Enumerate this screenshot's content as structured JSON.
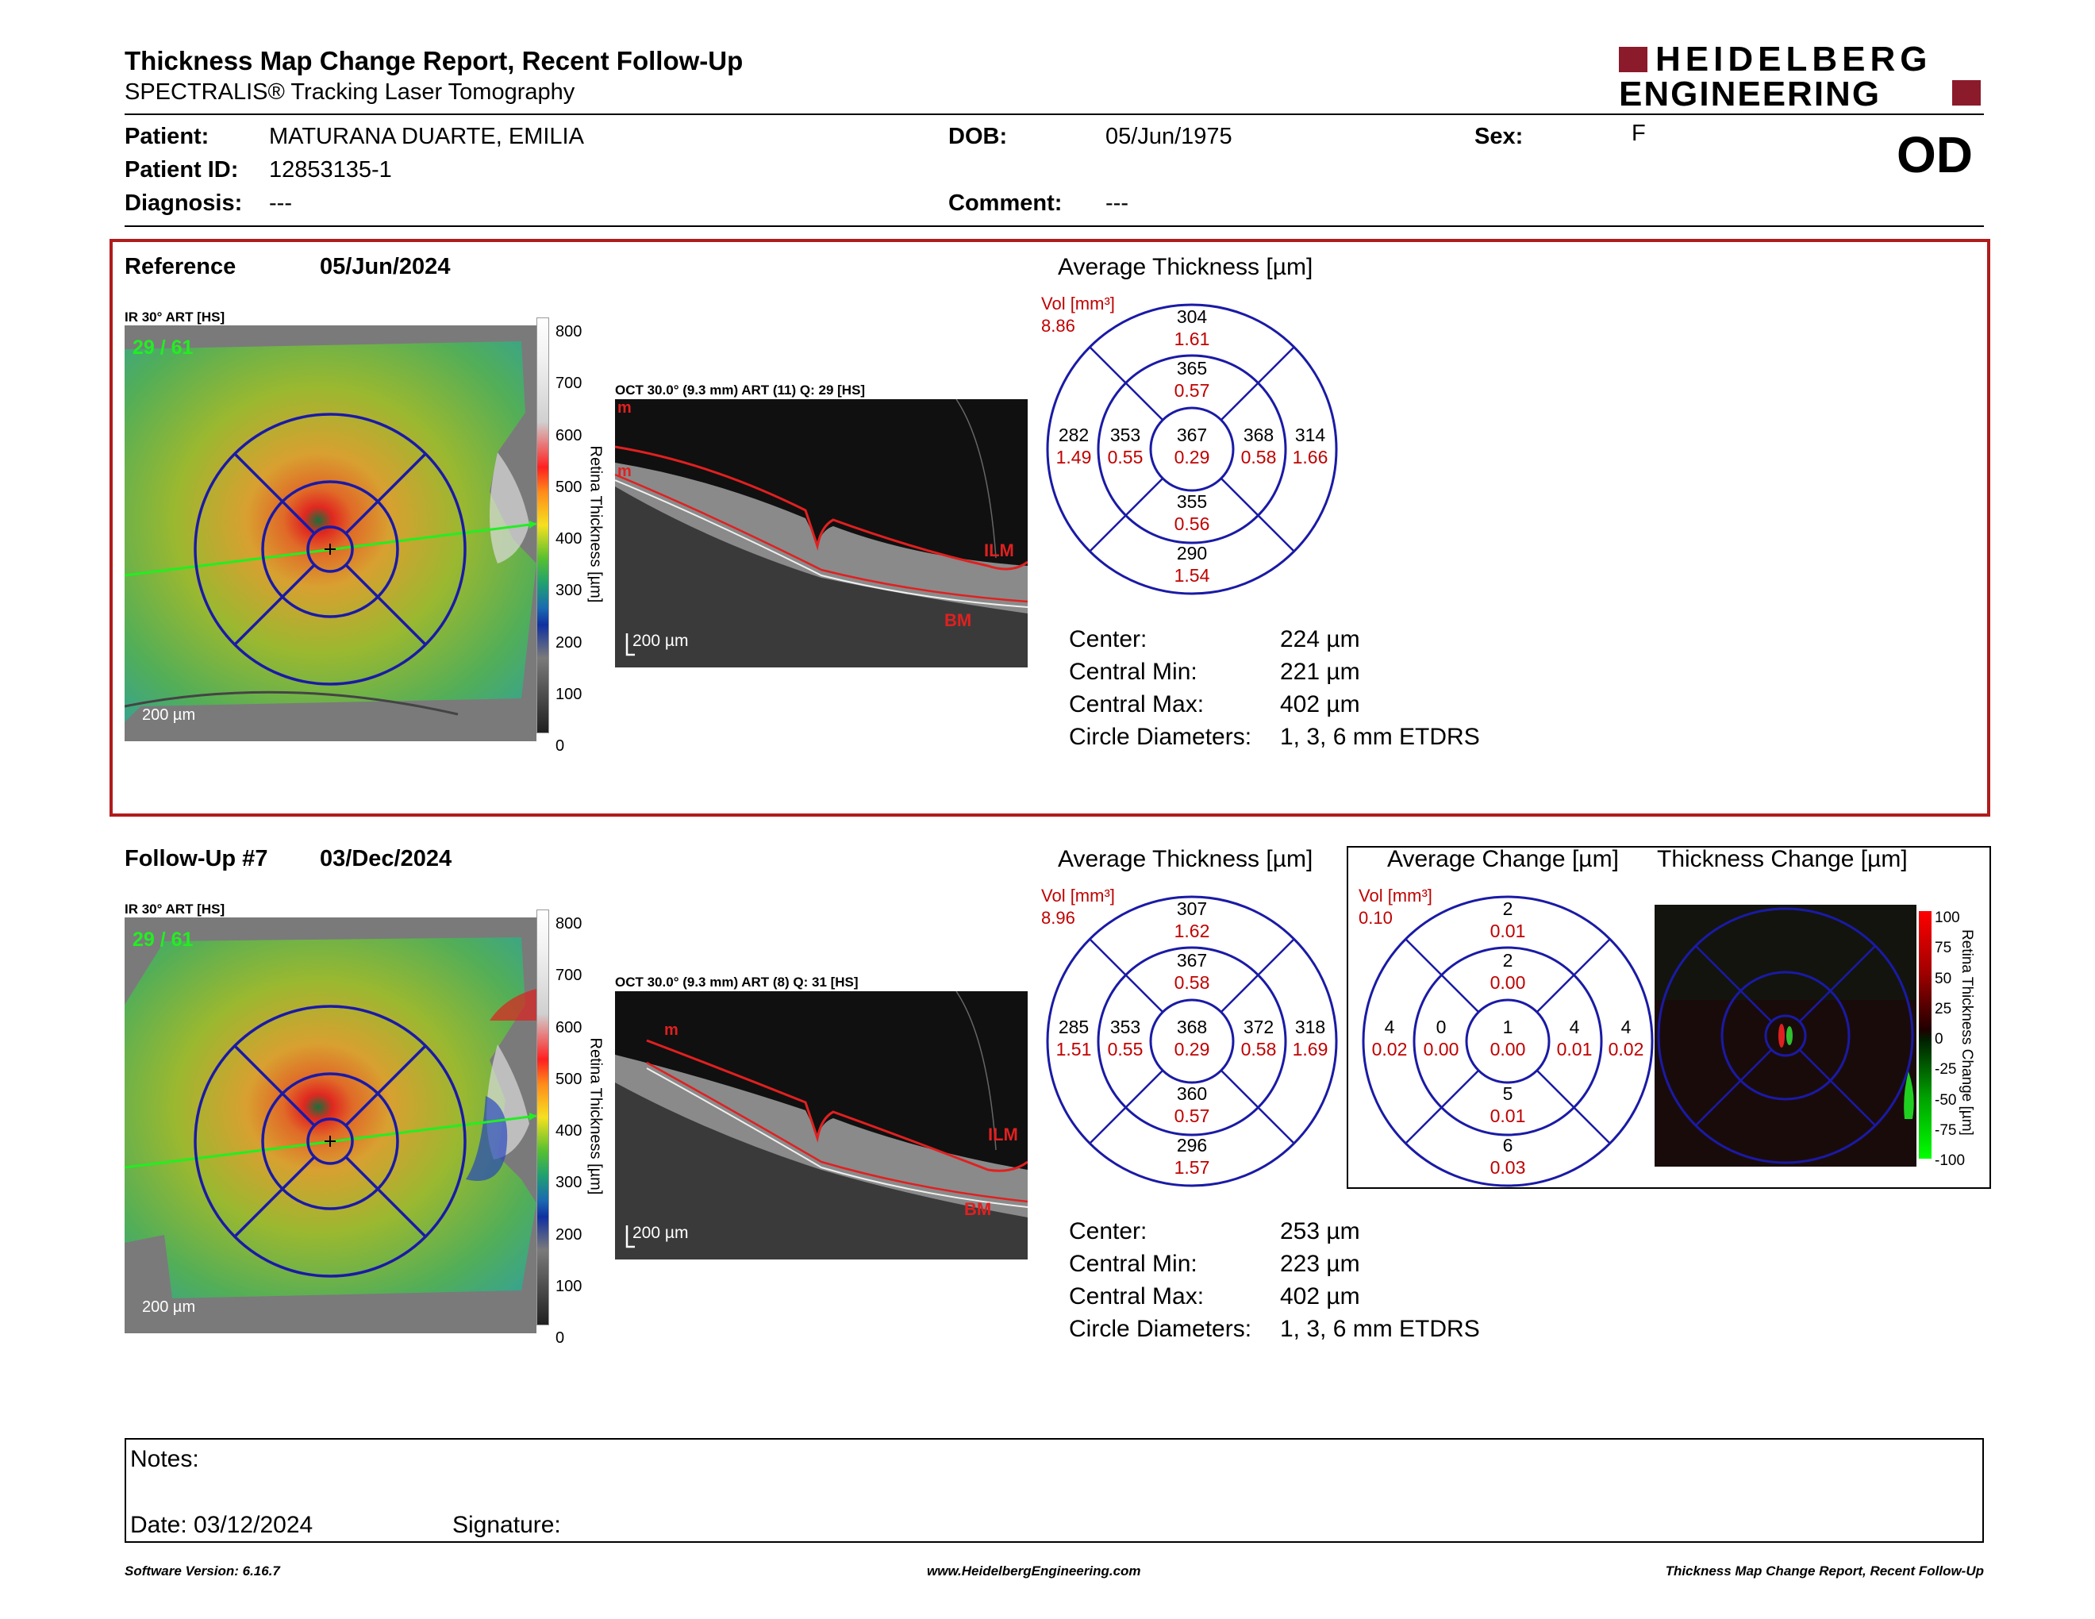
{
  "header": {
    "title": "Thickness Map Change Report, Recent Follow-Up",
    "subtitle": "SPECTRALIS® Tracking Laser Tomography",
    "logo_line1": "HEIDELBERG",
    "logo_line2": "ENGINEERING",
    "eye": "OD"
  },
  "patient": {
    "patient_label": "Patient:",
    "patient_value": "MATURANA DUARTE, EMILIA",
    "id_label": "Patient ID:",
    "id_value": "12853135-1",
    "diagnosis_label": "Diagnosis:",
    "diagnosis_value": "---",
    "dob_label": "DOB:",
    "dob_value": "05/Jun/1975",
    "comment_label": "Comment:",
    "comment_value": "---",
    "sex_label": "Sex:",
    "sex_value": "F"
  },
  "reference": {
    "label": "Reference",
    "date": "05/Jun/2024",
    "ir_label": "IR 30° ART [HS]",
    "ir_counter": "29 / 61",
    "ir_scale": "200 µm",
    "oct_label": "OCT 30.0° (9.3 mm) ART (11) Q: 29 [HS]",
    "oct_scale": "200 µm",
    "oct_ilm": "ILM",
    "oct_bm": "BM",
    "oct_m": "m",
    "colorbar_ticks": [
      "800",
      "700",
      "600",
      "500",
      "400",
      "300",
      "200",
      "100",
      "0"
    ],
    "colorbar_title": "Retina Thickness [µm]",
    "avg_title": "Average Thickness [µm]",
    "vol_label": "Vol [mm³]",
    "vol_value": "8.86",
    "grid": {
      "outer_top": [
        "304",
        "1.61"
      ],
      "inner_top": [
        "365",
        "0.57"
      ],
      "outer_left": [
        "282",
        "1.49"
      ],
      "inner_left": [
        "353",
        "0.55"
      ],
      "center": [
        "367",
        "0.29"
      ],
      "inner_right": [
        "368",
        "0.58"
      ],
      "outer_right": [
        "314",
        "1.66"
      ],
      "inner_bottom": [
        "355",
        "0.56"
      ],
      "outer_bottom": [
        "290",
        "1.54"
      ]
    },
    "stats": [
      {
        "label": "Center:",
        "value": "224 µm"
      },
      {
        "label": "Central Min:",
        "value": "221 µm"
      },
      {
        "label": "Central Max:",
        "value": "402 µm"
      },
      {
        "label": "Circle Diameters:",
        "value": "1, 3, 6 mm ETDRS"
      }
    ]
  },
  "followup": {
    "label": "Follow-Up #7",
    "date": "03/Dec/2024",
    "ir_label": "IR 30° ART [HS]",
    "ir_counter": "29 / 61",
    "ir_scale": "200 µm",
    "oct_label": "OCT 30.0° (9.3 mm) ART (8) Q: 31 [HS]",
    "oct_scale": "200 µm",
    "oct_ilm": "ILM",
    "oct_bm": "BM",
    "oct_m": "m",
    "colorbar_ticks": [
      "800",
      "700",
      "600",
      "500",
      "400",
      "300",
      "200",
      "100",
      "0"
    ],
    "colorbar_title": "Retina Thickness [µm]",
    "avg_title": "Average Thickness [µm]",
    "vol_label": "Vol [mm³]",
    "vol_value": "8.96",
    "grid": {
      "outer_top": [
        "307",
        "1.62"
      ],
      "inner_top": [
        "367",
        "0.58"
      ],
      "outer_left": [
        "285",
        "1.51"
      ],
      "inner_left": [
        "353",
        "0.55"
      ],
      "center": [
        "368",
        "0.29"
      ],
      "inner_right": [
        "372",
        "0.58"
      ],
      "outer_right": [
        "318",
        "1.69"
      ],
      "inner_bottom": [
        "360",
        "0.57"
      ],
      "outer_bottom": [
        "296",
        "1.57"
      ]
    },
    "change_title": "Average Change [µm]",
    "change_vol_label": "Vol [mm³]",
    "change_vol_value": "0.10",
    "change_grid": {
      "outer_top": [
        "2",
        "0.01"
      ],
      "inner_top": [
        "2",
        "0.00"
      ],
      "outer_left": [
        "4",
        "0.02"
      ],
      "inner_left": [
        "0",
        "0.00"
      ],
      "center": [
        "1",
        "0.00"
      ],
      "inner_right": [
        "4",
        "0.01"
      ],
      "outer_right": [
        "4",
        "0.02"
      ],
      "inner_bottom": [
        "5",
        "0.01"
      ],
      "outer_bottom": [
        "6",
        "0.03"
      ]
    },
    "thickness_change_title": "Thickness Change [µm]",
    "change_bar_ticks": [
      "100",
      "75",
      "50",
      "25",
      "0",
      "-25",
      "-50",
      "-75",
      "-100"
    ],
    "change_bar_title": "Retina Thickness Change [µm]",
    "stats": [
      {
        "label": "Center:",
        "value": "253 µm"
      },
      {
        "label": "Central Min:",
        "value": "223 µm"
      },
      {
        "label": "Central Max:",
        "value": "402 µm"
      },
      {
        "label": "Circle Diameters:",
        "value": "1, 3, 6 mm ETDRS"
      }
    ]
  },
  "notes": {
    "notes_label": "Notes:",
    "date_label": "Date: 03/12/2024",
    "signature_label": "Signature:"
  },
  "footer": {
    "left": "Software Version: 6.16.7",
    "center": "www.HeidelbergEngineering.com",
    "right": "Thickness Map Change Report, Recent Follow-Up"
  },
  "colors": {
    "brand": "#8b1a2b",
    "accent_red": "#c00000",
    "grid_blue": "#1a1aa6",
    "box_border": "#b01c1c"
  }
}
